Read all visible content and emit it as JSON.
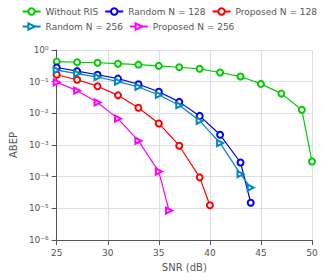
{
  "chart_data": {
    "type": "line",
    "title": "",
    "xlabel": "SNR (dB)",
    "ylabel": "ABEP",
    "log": "y",
    "grid": true,
    "legend": "upper right",
    "xlim": [
      25,
      50
    ],
    "xticks": [
      25,
      30,
      35,
      40,
      45,
      50
    ],
    "ylim": [
      1e-06,
      1
    ],
    "yticks": [
      {
        "value": 1e-06,
        "label": "10⁻⁶"
      },
      {
        "value": 1e-05,
        "label": "10⁻⁵"
      },
      {
        "value": 0.0001,
        "label": "10⁻⁴"
      },
      {
        "value": 0.001,
        "label": "10⁻³"
      },
      {
        "value": 0.01,
        "label": "10⁻²"
      },
      {
        "value": 0.1,
        "label": "10⁻¹"
      },
      {
        "value": 1,
        "label": "10⁰"
      }
    ],
    "series": [
      {
        "name": "Without RIS",
        "color": "#00cc00",
        "marker": "circle",
        "x": [
          25,
          27,
          29,
          31,
          33,
          35,
          37,
          39,
          41,
          43,
          45,
          47,
          49,
          50
        ],
        "values": [
          0.43,
          0.41,
          0.395,
          0.37,
          0.345,
          0.315,
          0.285,
          0.255,
          0.195,
          0.145,
          0.085,
          0.042,
          0.013,
          0.0003
        ]
      },
      {
        "name": "Random N = 128",
        "color": "#0000ff",
        "marker": "circle",
        "x": [
          25,
          27,
          29,
          31,
          33,
          35,
          37,
          39,
          41,
          43,
          44
        ],
        "values": [
          0.28,
          0.215,
          0.165,
          0.125,
          0.083,
          0.048,
          0.023,
          0.0083,
          0.0021,
          0.00028,
          1.5e-05
        ]
      },
      {
        "name": "Proposed N = 128",
        "color": "#ff0000",
        "marker": "circle",
        "x": [
          25,
          27,
          29,
          31,
          33,
          35,
          37,
          39,
          40
        ],
        "values": [
          0.165,
          0.115,
          0.072,
          0.037,
          0.015,
          0.0048,
          0.00095,
          9.5e-05,
          1.25e-05
        ]
      },
      {
        "name": "Random N = 256",
        "color": "#0088bb",
        "marker": "triangle-right",
        "x": [
          25,
          27,
          29,
          31,
          33,
          35,
          37,
          39,
          41,
          43,
          44
        ],
        "values": [
          0.23,
          0.18,
          0.14,
          0.1,
          0.068,
          0.038,
          0.018,
          0.0058,
          0.00115,
          0.00012,
          4.5e-05
        ]
      },
      {
        "name": "Proposed N = 256",
        "color": "#ff00ff",
        "marker": "triangle-right",
        "x": [
          25,
          27,
          29,
          31,
          33,
          35,
          36
        ],
        "values": [
          0.095,
          0.052,
          0.022,
          0.0068,
          0.00135,
          0.000145,
          8.5e-06
        ]
      }
    ]
  }
}
